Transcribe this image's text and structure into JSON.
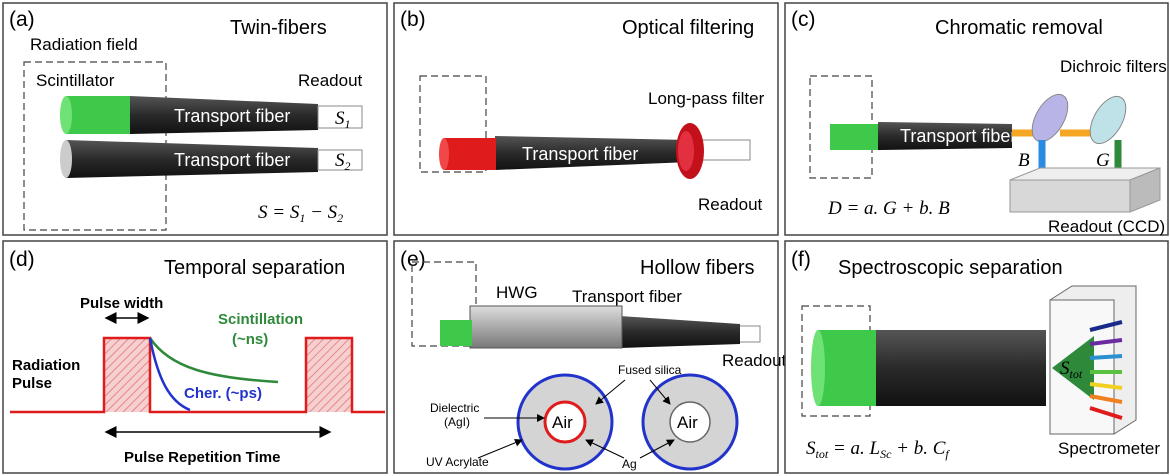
{
  "panels": [
    {
      "label": "(a)",
      "title": "Twin-fibers",
      "field": "Radiation field",
      "scintillator": "Scintillator",
      "readout": "Readout",
      "fiber1": "Transport fiber",
      "fiber2": "Transport fiber",
      "tip1": [
        {
          "text": "S"
        },
        {
          "sub": "1"
        }
      ],
      "tip2": [
        {
          "text": "S"
        },
        {
          "sub": "2"
        }
      ],
      "formula": [
        {
          "text": "S = S"
        },
        {
          "sub": "1"
        },
        {
          "text": " − S"
        },
        {
          "sub": "2"
        }
      ]
    },
    {
      "label": "(b)",
      "title": "Optical filtering",
      "filter": "Long-pass filter",
      "fiber": "Transport fiber",
      "readout": "Readout"
    },
    {
      "label": "(c)",
      "title": "Chromatic removal",
      "filters": "Dichroic filters",
      "fiber": "Transport fiber",
      "blue": "B",
      "green": "G",
      "formula": [
        {
          "text": "D = a. G + b. B"
        }
      ],
      "readout": "Readout (CCD)"
    },
    {
      "label": "(d)",
      "title": "Temporal separation",
      "width": "Pulse width",
      "scint": "Scintillation",
      "scint_time": "(~ns)",
      "pulse1": "Radiation",
      "pulse2": "Pulse",
      "cher": "Cher. (~ps)",
      "period": "Pulse Repetition Time"
    },
    {
      "label": "(e)",
      "title": "Hollow fibers",
      "hwg": "HWG",
      "fiber": "Transport fiber",
      "readout": "Readout",
      "silica": "Fused silica",
      "dielectric": "Dielectric",
      "agi": "(AgI)",
      "air1": "Air",
      "air2": "Air",
      "acrylate": "UV Acrylate",
      "ag": "Ag"
    },
    {
      "label": "(f)",
      "title": "Spectroscopic separation",
      "signal": [
        {
          "text": "S"
        },
        {
          "sub": "tot"
        }
      ],
      "formula": [
        {
          "text": "S"
        },
        {
          "sub": "tot"
        },
        {
          "text": " = a. L"
        },
        {
          "sub": "Sc"
        },
        {
          "text": " + b. C"
        },
        {
          "sub": "f"
        }
      ],
      "spectrometer": "Spectrometer"
    }
  ]
}
